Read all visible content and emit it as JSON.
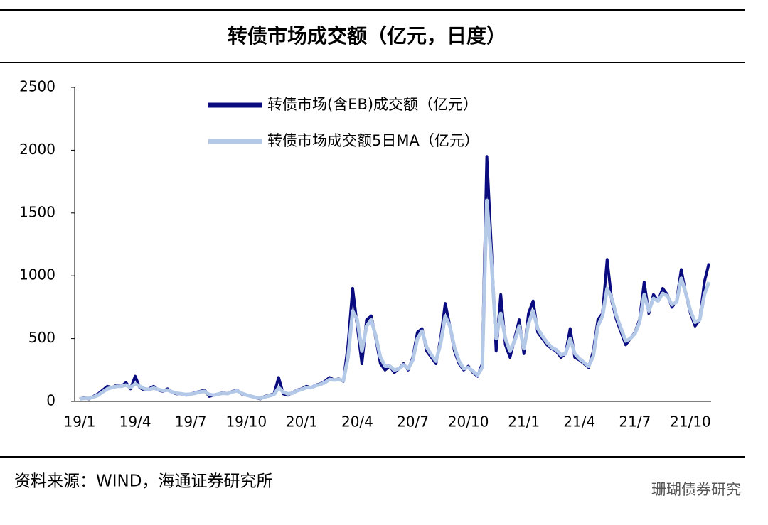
{
  "chart_data": {
    "type": "line",
    "title": "转债市场成交额（亿元，日度）",
    "source": "资料来源：WIND，海通证券研究所",
    "watermark": "珊瑚债券研究",
    "categories": [
      "19/1",
      null,
      null,
      null,
      null,
      null,
      null,
      null,
      null,
      null,
      null,
      null,
      "19/4",
      null,
      null,
      null,
      null,
      null,
      null,
      null,
      null,
      null,
      null,
      null,
      "19/7",
      null,
      null,
      null,
      null,
      null,
      null,
      null,
      null,
      null,
      null,
      null,
      "19/10",
      null,
      null,
      null,
      null,
      null,
      null,
      null,
      null,
      null,
      null,
      null,
      "20/1",
      null,
      null,
      null,
      null,
      null,
      null,
      null,
      null,
      null,
      null,
      null,
      "20/4",
      null,
      null,
      null,
      null,
      null,
      null,
      null,
      null,
      null,
      null,
      null,
      "20/7",
      null,
      null,
      null,
      null,
      null,
      null,
      null,
      null,
      null,
      null,
      null,
      "20/10",
      null,
      null,
      null,
      null,
      null,
      null,
      null,
      null,
      null,
      null,
      null,
      "21/1",
      null,
      null,
      null,
      null,
      null,
      null,
      null,
      null,
      null,
      null,
      null,
      "21/4",
      null,
      null,
      null,
      null,
      null,
      null,
      null,
      null,
      null,
      null,
      null,
      "21/7",
      null,
      null,
      null,
      null,
      null,
      null,
      null,
      null,
      null,
      null,
      null,
      "21/10",
      null,
      null,
      null,
      null
    ],
    "series": [
      {
        "name": "转债市场(含EB)成交额（亿元）",
        "color": "#0b0b80",
        "values": [
          20,
          30,
          20,
          40,
          60,
          90,
          120,
          110,
          130,
          120,
          150,
          100,
          200,
          110,
          90,
          100,
          120,
          90,
          80,
          100,
          70,
          60,
          60,
          50,
          60,
          70,
          80,
          90,
          40,
          50,
          60,
          70,
          60,
          80,
          90,
          60,
          50,
          40,
          30,
          20,
          40,
          50,
          60,
          190,
          60,
          50,
          70,
          90,
          100,
          120,
          110,
          130,
          140,
          160,
          190,
          170,
          180,
          160,
          450,
          900,
          600,
          300,
          650,
          680,
          500,
          300,
          250,
          280,
          230,
          260,
          300,
          250,
          350,
          550,
          580,
          400,
          350,
          300,
          500,
          780,
          600,
          400,
          300,
          250,
          280,
          230,
          200,
          300,
          1950,
          1200,
          400,
          850,
          450,
          350,
          500,
          650,
          380,
          700,
          800,
          550,
          500,
          450,
          420,
          400,
          350,
          380,
          580,
          350,
          330,
          300,
          270,
          400,
          650,
          700,
          1130,
          800,
          650,
          550,
          450,
          500,
          550,
          650,
          950,
          700,
          850,
          800,
          900,
          850,
          750,
          800,
          1050,
          850,
          700,
          600,
          650,
          950,
          1100
        ]
      },
      {
        "name": "转债市场成交额5日MA（亿元）",
        "color": "#b4c9e7",
        "values": [
          20,
          25,
          25,
          35,
          50,
          75,
          100,
          110,
          120,
          120,
          130,
          110,
          140,
          120,
          100,
          95,
          105,
          95,
          85,
          90,
          75,
          65,
          60,
          55,
          58,
          65,
          75,
          80,
          55,
          50,
          58,
          65,
          62,
          75,
          85,
          65,
          52,
          42,
          32,
          25,
          35,
          45,
          55,
          110,
          75,
          60,
          65,
          85,
          95,
          110,
          110,
          125,
          135,
          150,
          175,
          170,
          175,
          165,
          350,
          720,
          650,
          400,
          600,
          650,
          520,
          350,
          280,
          280,
          250,
          260,
          290,
          260,
          330,
          500,
          560,
          430,
          370,
          320,
          460,
          680,
          600,
          430,
          320,
          260,
          270,
          240,
          210,
          270,
          1600,
          1100,
          500,
          700,
          500,
          400,
          480,
          600,
          420,
          620,
          720,
          580,
          520,
          470,
          430,
          410,
          370,
          380,
          500,
          380,
          340,
          310,
          280,
          360,
          600,
          680,
          900,
          820,
          680,
          580,
          480,
          500,
          540,
          630,
          850,
          720,
          820,
          800,
          860,
          840,
          770,
          790,
          980,
          860,
          720,
          630,
          650,
          850,
          950
        ]
      }
    ],
    "ylim": [
      0,
      2500
    ],
    "yticks": [
      0,
      500,
      1000,
      1500,
      2000,
      2500
    ]
  }
}
